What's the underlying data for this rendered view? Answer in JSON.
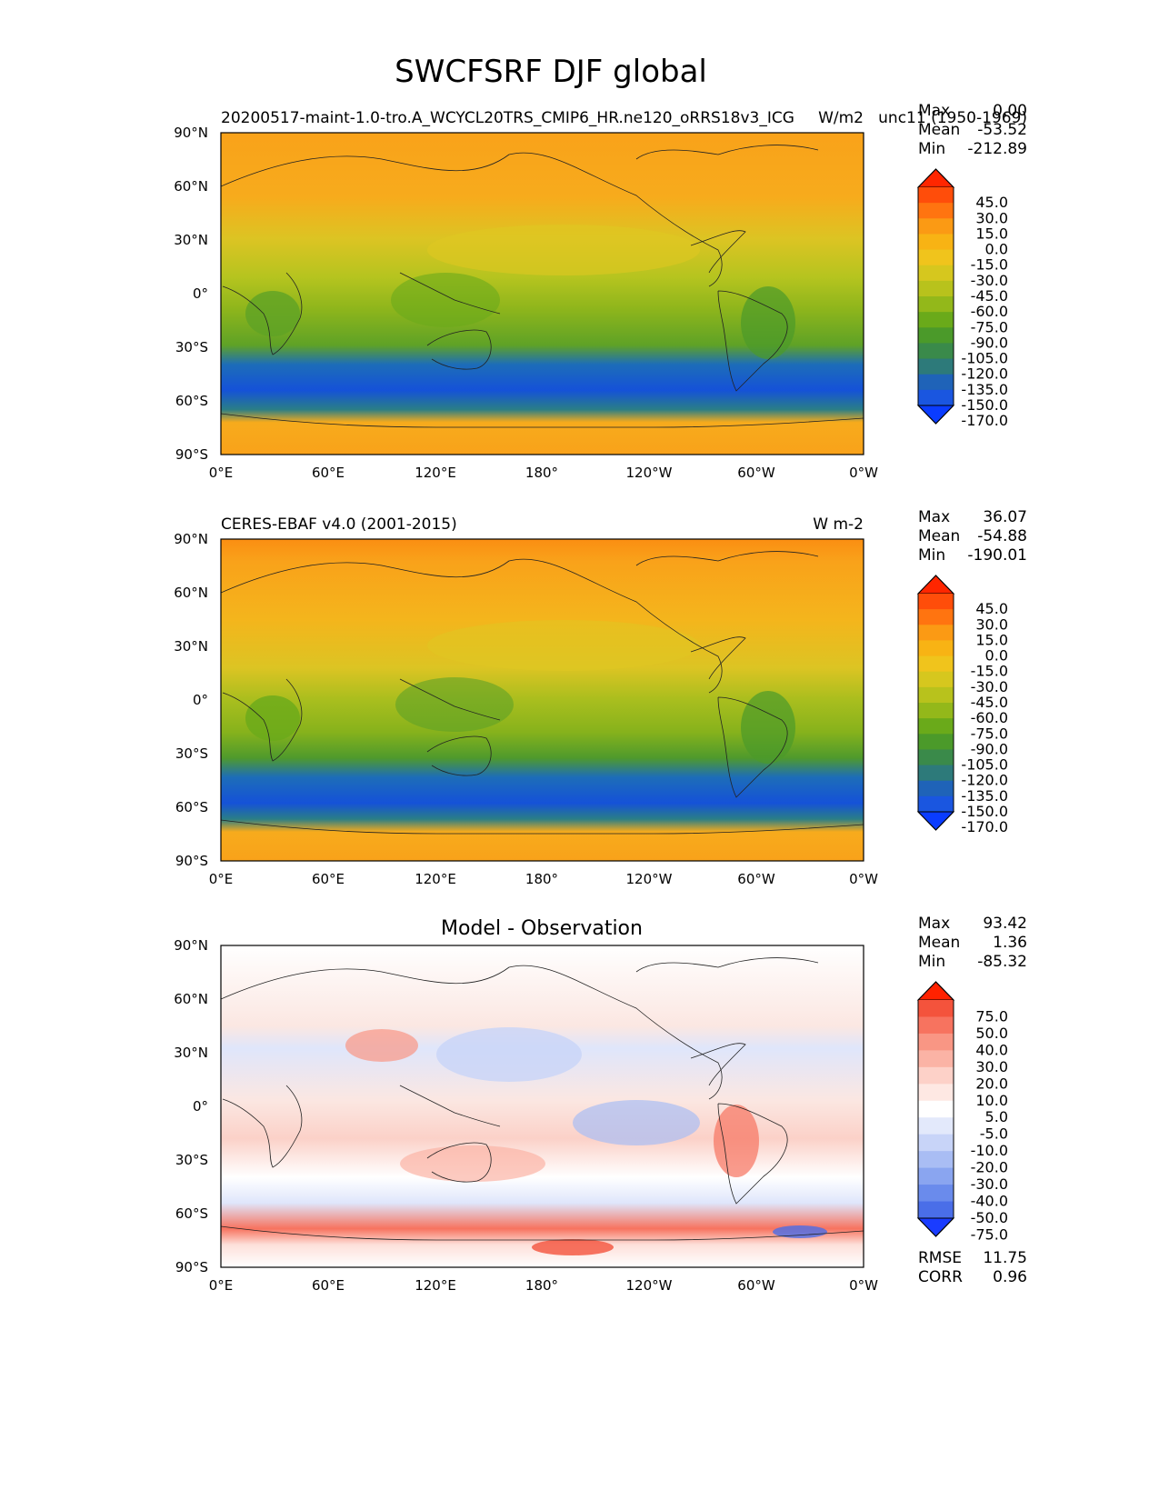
{
  "figure": {
    "title": "SWCFSRF DJF global"
  },
  "chart_data": [
    {
      "type": "heatmap",
      "title_left": "20200517-maint-1.0-tro.A_WCYCL20TRS_CMIP6_HR.ne120_oRRS18v3_ICG",
      "title_right": "W/m2",
      "title_extra": "unc11 (1950-1969)",
      "stats": {
        "max": "0.00",
        "mean": "-53.52",
        "min": "-212.89"
      },
      "stat_labels": {
        "max": "Max",
        "mean": "Mean",
        "min": "Min"
      },
      "xticks": [
        "0°E",
        "60°E",
        "120°E",
        "180°",
        "120°W",
        "60°W",
        "0°W"
      ],
      "yticks": [
        "90°N",
        "60°N",
        "30°N",
        "0°",
        "30°S",
        "60°S",
        "90°S"
      ],
      "xlim": [
        0,
        360
      ],
      "ylim": [
        -90,
        90
      ],
      "colorbar": {
        "levels": [
          "45.0",
          "30.0",
          "15.0",
          "0.0",
          "-15.0",
          "-30.0",
          "-45.0",
          "-60.0",
          "-75.0",
          "-90.0",
          "-105.0",
          "-120.0",
          "-135.0",
          "-150.0",
          "-170.0"
        ],
        "colors": [
          "#ff2600",
          "#ff4d0a",
          "#ff7410",
          "#fb9a14",
          "#f8b314",
          "#f0c41c",
          "#d6c71e",
          "#b8c21c",
          "#93b81a",
          "#6aaa1a",
          "#4b9a2a",
          "#3a8a4a",
          "#2d7a7a",
          "#1f63b8",
          "#1a56e0",
          "#0a3cff"
        ]
      }
    },
    {
      "type": "heatmap",
      "title_left": "CERES-EBAF v4.0 (2001-2015)",
      "title_right": "W m-2",
      "stats": {
        "max": "36.07",
        "mean": "-54.88",
        "min": "-190.01"
      },
      "stat_labels": {
        "max": "Max",
        "mean": "Mean",
        "min": "Min"
      },
      "xticks": [
        "0°E",
        "60°E",
        "120°E",
        "180°",
        "120°W",
        "60°W",
        "0°W"
      ],
      "yticks": [
        "90°N",
        "60°N",
        "30°N",
        "0°",
        "30°S",
        "60°S",
        "90°S"
      ],
      "xlim": [
        0,
        360
      ],
      "ylim": [
        -90,
        90
      ],
      "colorbar": {
        "levels": [
          "45.0",
          "30.0",
          "15.0",
          "0.0",
          "-15.0",
          "-30.0",
          "-45.0",
          "-60.0",
          "-75.0",
          "-90.0",
          "-105.0",
          "-120.0",
          "-135.0",
          "-150.0",
          "-170.0"
        ],
        "colors": [
          "#ff2600",
          "#ff4d0a",
          "#ff7410",
          "#fb9a14",
          "#f8b314",
          "#f0c41c",
          "#d6c71e",
          "#b8c21c",
          "#93b81a",
          "#6aaa1a",
          "#4b9a2a",
          "#3a8a4a",
          "#2d7a7a",
          "#1f63b8",
          "#1a56e0",
          "#0a3cff"
        ]
      }
    },
    {
      "type": "heatmap",
      "title_center": "Model - Observation",
      "stats": {
        "max": "93.42",
        "mean": "1.36",
        "min": "-85.32"
      },
      "stat_labels": {
        "max": "Max",
        "mean": "Mean",
        "min": "Min"
      },
      "extra_stats": {
        "rmse_label": "RMSE",
        "rmse": "11.75",
        "corr_label": "CORR",
        "corr": "0.96"
      },
      "xticks": [
        "0°E",
        "60°E",
        "120°E",
        "180°",
        "120°W",
        "60°W",
        "0°W"
      ],
      "yticks": [
        "90°N",
        "60°N",
        "30°N",
        "0°",
        "30°S",
        "60°S",
        "90°S"
      ],
      "xlim": [
        0,
        360
      ],
      "ylim": [
        -90,
        90
      ],
      "colorbar": {
        "levels": [
          "75.0",
          "50.0",
          "40.0",
          "30.0",
          "20.0",
          "10.0",
          "5.0",
          "-5.0",
          "-10.0",
          "-20.0",
          "-30.0",
          "-40.0",
          "-50.0",
          "-75.0"
        ],
        "colors": [
          "#ff2200",
          "#f4533c",
          "#f7735f",
          "#f99684",
          "#fbb3a5",
          "#fdd1c8",
          "#fee8e3",
          "#ffffff",
          "#e3e9fb",
          "#c8d4f8",
          "#a9bdf4",
          "#8aa5f0",
          "#6a8bec",
          "#4a6ee8",
          "#1a3cff"
        ]
      }
    }
  ]
}
